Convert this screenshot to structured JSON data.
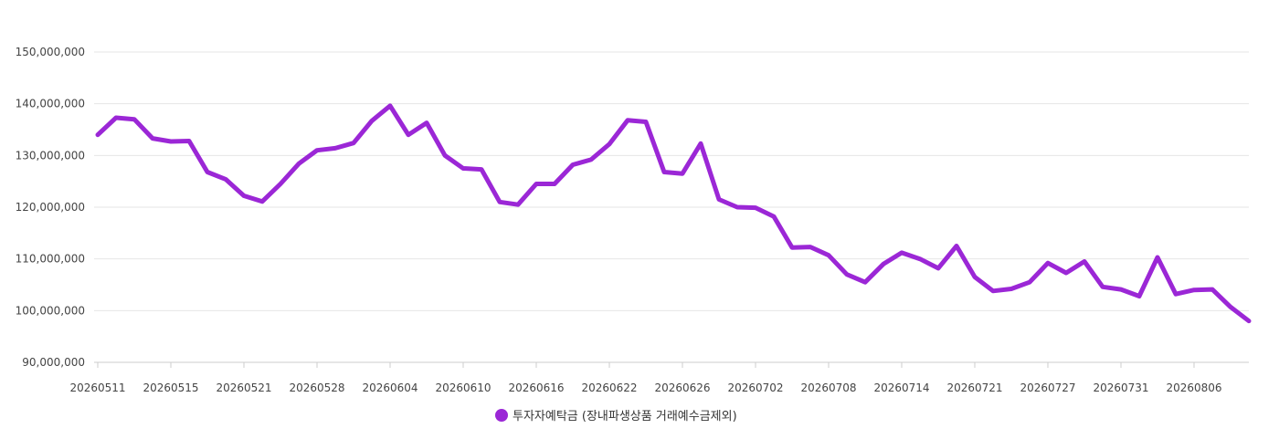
{
  "chart_data": {
    "type": "line",
    "title": "",
    "xlabel": "",
    "ylabel": "",
    "ylim": [
      90000000,
      150000000
    ],
    "yticks": [
      90000000,
      100000000,
      110000000,
      120000000,
      130000000,
      140000000,
      150000000
    ],
    "ytick_labels": [
      "90,000,000",
      "100,000,000",
      "110,000,000",
      "120,000,000",
      "130,000,000",
      "140,000,000",
      "150,000,000"
    ],
    "xtick_labels": [
      {
        "index": 0,
        "label": "20260511"
      },
      {
        "index": 4,
        "label": "20260515"
      },
      {
        "index": 8,
        "label": "20260521"
      },
      {
        "index": 12,
        "label": "20260528"
      },
      {
        "index": 16,
        "label": "20260604"
      },
      {
        "index": 20,
        "label": "20260610"
      },
      {
        "index": 24,
        "label": "20260616"
      },
      {
        "index": 28,
        "label": "20260622"
      },
      {
        "index": 32,
        "label": "20260626"
      },
      {
        "index": 36,
        "label": "20260702"
      },
      {
        "index": 40,
        "label": "20260708"
      },
      {
        "index": 44,
        "label": "20260714"
      },
      {
        "index": 48,
        "label": "20260721"
      },
      {
        "index": 52,
        "label": "20260727"
      },
      {
        "index": 56,
        "label": "20260731"
      },
      {
        "index": 60,
        "label": "20260806"
      }
    ],
    "grid": true,
    "legend_position": "bottom-center",
    "series": [
      {
        "name": "투자자예탁금 (장내파생상품 거래예수금제외)",
        "color": "#9b27d6",
        "values": [
          134000000,
          137300000,
          137000000,
          133300000,
          132700000,
          132800000,
          126800000,
          125400000,
          122200000,
          121100000,
          124500000,
          128400000,
          131000000,
          131400000,
          132400000,
          136700000,
          139600000,
          134000000,
          136300000,
          130000000,
          127500000,
          127300000,
          121000000,
          120500000,
          124500000,
          124500000,
          128200000,
          129200000,
          132200000,
          136800000,
          136500000,
          126800000,
          126500000,
          132300000,
          121500000,
          120000000,
          119900000,
          118200000,
          112200000,
          112300000,
          110700000,
          107000000,
          105500000,
          109000000,
          111200000,
          110000000,
          108200000,
          112500000,
          106500000,
          103800000,
          104200000,
          105500000,
          109200000,
          107300000,
          109500000,
          104600000,
          104100000,
          102800000,
          110300000,
          103200000,
          104000000,
          104100000,
          100700000,
          98000000
        ]
      }
    ]
  }
}
